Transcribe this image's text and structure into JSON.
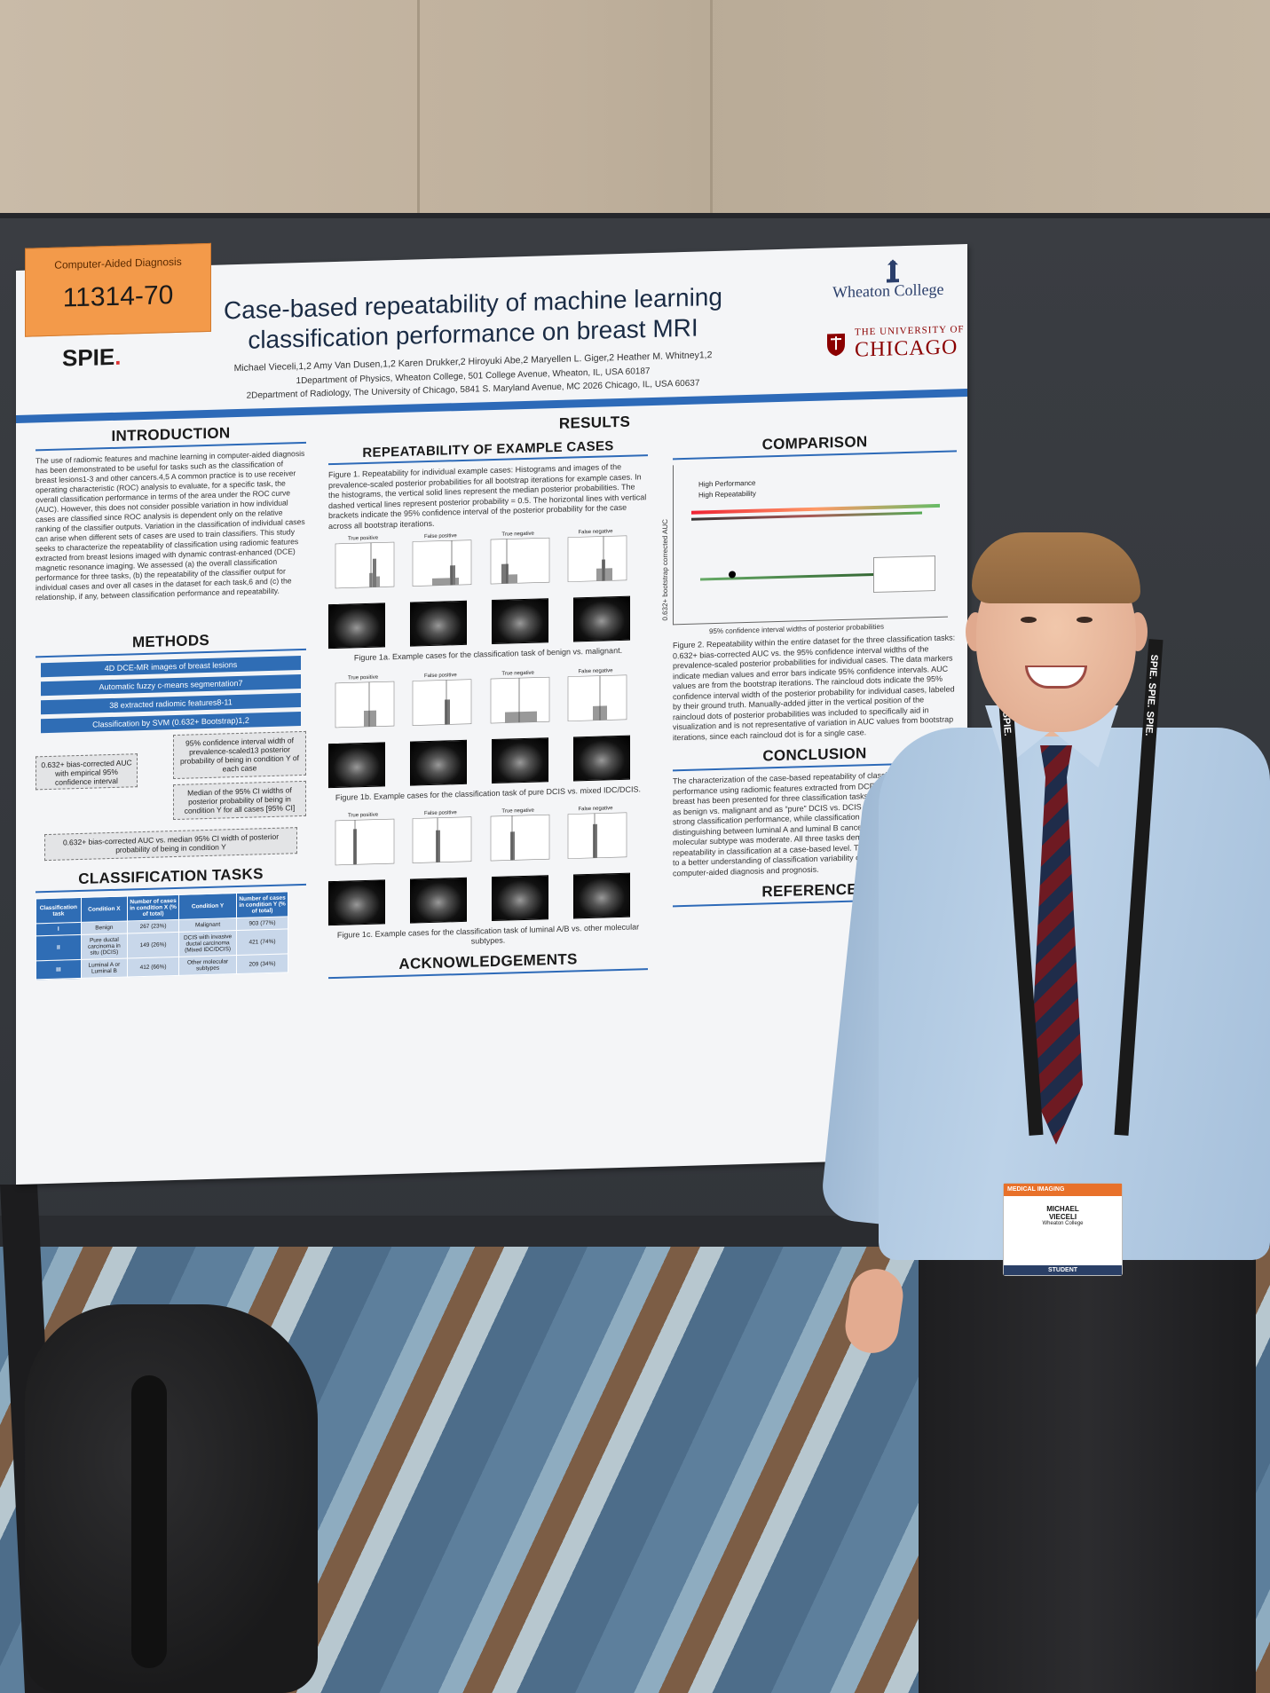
{
  "poster": {
    "tag": {
      "category": "Computer-Aided Diagnosis",
      "number": "11314-70"
    },
    "spie": "SPIE",
    "title_line1": "Case-based repeatability of machine learning",
    "title_line2": "classification performance on breast MRI",
    "authors": "Michael Vieceli,1,2 Amy Van Dusen,1,2 Karen Drukker,2 Hiroyuki Abe,2 Maryellen L. Giger,2 Heather M. Whitney1,2",
    "affil1": "1Department of Physics, Wheaton College, 501 College Avenue, Wheaton, IL, USA 60187",
    "affil2": "2Department of Radiology, The University of Chicago, 5841 S. Maryland Avenue, MC 2026 Chicago, IL, USA 60637",
    "logo_wheaton": "Wheaton College",
    "logo_uchicago_small": "THE UNIVERSITY OF",
    "logo_uchicago_big": "CHICAGO",
    "introduction": {
      "title": "INTRODUCTION",
      "text": "The use of radiomic features and machine learning in computer-aided diagnosis has been demonstrated to be useful for tasks such as the classification of breast lesions1-3 and other cancers.4,5 A common practice is to use receiver operating characteristic (ROC) analysis to evaluate, for a specific task, the overall classification performance in terms of the area under the ROC curve (AUC). However, this does not consider possible variation in how individual cases are classified since ROC analysis is dependent only on the relative ranking of the classifier outputs. Variation in the classification of individual cases can arise when different sets of cases are used to train classifiers. This study seeks to characterize the repeatability of classification using radiomic features extracted from breast lesions imaged with dynamic contrast-enhanced (DCE) magnetic resonance imaging. We assessed (a) the overall classification performance for three tasks, (b) the repeatability of the classifier output for individual cases and over all cases in the dataset for each task,6 and (c) the relationship, if any, between classification performance and repeatability."
    },
    "methods": {
      "title": "METHODS",
      "steps": [
        "4D DCE-MR images of breast lesions",
        "Automatic fuzzy c-means segmentation7",
        "38 extracted radiomic features8-11",
        "Classification by SVM (0.632+ Bootstrap)1,2"
      ],
      "box_left": "0.632+ bias-corrected AUC with empirical 95% confidence interval",
      "box_right1": "95% confidence interval width of prevalence-scaled13 posterior probability of being in condition Y of each case",
      "box_right2": "Median of the 95% CI widths of posterior probability of being in condition Y for all cases [95% CI]",
      "box_bottom": "0.632+ bias-corrected AUC vs. median 95% CI width of posterior probability of being in condition Y"
    },
    "tasks": {
      "title": "CLASSIFICATION TASKS",
      "headers": [
        "Classification task",
        "Condition X",
        "Number of cases in condition X (% of total)",
        "Condition Y",
        "Number of cases in condition Y (% of total)"
      ],
      "rows": [
        [
          "I",
          "Benign",
          "267 (23%)",
          "Malignant",
          "903 (77%)"
        ],
        [
          "II",
          "Pure ductal carcinoma in situ (DCIS)",
          "149 (26%)",
          "DCIS with invasive ductal carcinoma (Mixed IDC/DCIS)",
          "421 (74%)"
        ],
        [
          "III",
          "Luminal A or Luminal B",
          "412 (66%)",
          "Other molecular subtypes",
          "209 (34%)"
        ]
      ]
    },
    "results": {
      "title": "RESULTS",
      "repeat_title": "REPEATABILITY OF EXAMPLE CASES",
      "fig1_text": "Figure 1. Repeatability for individual example cases: Histograms and images of the prevalence-scaled posterior probabilities for all bootstrap iterations for example cases. In the histograms, the vertical solid lines represent the median posterior probabilities. The dashed vertical lines represent posterior probability = 0.5. The horizontal lines with vertical brackets indicate the 95% confidence interval of the posterior probability for the case across all bootstrap iterations.",
      "hist_labels_a": [
        "True positive",
        "False positive",
        "True negative",
        "False negative"
      ],
      "fig1a": "Figure 1a. Example cases for the classification task of benign vs. malignant.",
      "fig1b": "Figure 1b. Example cases for the classification task of pure DCIS vs. mixed IDC/DCIS.",
      "fig1c": "Figure 1c. Example cases for the classification task of luminal A/B vs. other molecular subtypes.",
      "ack_title": "ACKNOWLEDGEMENTS"
    },
    "comparison": {
      "title": "COMPARISON",
      "legend_hp": "High Performance",
      "legend_hr": "High Repeatability",
      "ylabel": "0.632+ bootstrap corrected AUC",
      "xlabel": "95% confidence interval widths of posterior probabilities",
      "fig2": "Figure 2. Repeatability within the entire dataset for the three classification tasks: 0.632+ bias-corrected AUC vs. the 95% confidence interval widths of the prevalence-scaled posterior probabilities for individual cases. The data markers indicate median values and error bars indicate 95% confidence intervals. AUC values are from the bootstrap iterations. The raincloud dots indicate the 95% confidence interval width of the posterior probability for individual cases, labeled by their ground truth. Manually-added jitter in the vertical position of the raincloud dots of posterior probabilities was included to specifically aid in visualization and is not representative of variation in AUC values from bootstrap iterations, since each raincloud dot is for a single case.",
      "conclusion_title": "CONCLUSION",
      "conclusion": "The characterization of the case-based repeatability of classification performance using radiomic features extracted from DCE-MR images of the breast has been presented for three classification tasks. Classification of lesions as benign vs. malignant and as “pure” DCIS vs. DCIS with IDC demonstrated strong classification performance, while classification performance in the task of distinguishing between luminal A and luminal B cancers vs. cancers of other molecular subtype was moderate. All three tasks demonstrated comparable repeatability in classification at a case-based level. These results may contribute to a better understanding of classification variability of cases analyzed within computer-aided diagnosis and prognosis.",
      "references_title": "REFERENCES"
    }
  },
  "badge": {
    "header": "MEDICAL IMAGING",
    "first": "MICHAEL",
    "last": "VIECELI",
    "school": "Wheaton College",
    "role": "STUDENT"
  },
  "lanyard_text": "SPIE."
}
